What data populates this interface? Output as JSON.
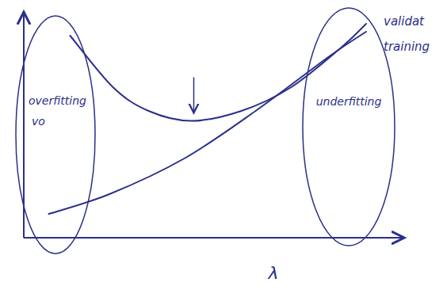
{
  "chart_data": {
    "type": "line",
    "xlabel": "λ",
    "xlim": [
      0,
      10
    ],
    "ylim": [
      0,
      11
    ],
    "tick_labels": false,
    "grid": false,
    "series": [
      {
        "name": "validat",
        "color": "#2b2f8a",
        "x": [
          1.3,
          2.5,
          3.5,
          4.7,
          6.1,
          7.5,
          8.9,
          9.6
        ],
        "values": [
          10.2,
          7.6,
          6.4,
          5.9,
          6.4,
          7.6,
          9.6,
          10.8
        ]
      },
      {
        "name": "training",
        "color": "#2b2f8a",
        "x": [
          0.7,
          2.4,
          4.5,
          6.5,
          8.6,
          9.6
        ],
        "values": [
          1.2,
          2.2,
          4.0,
          6.4,
          9.2,
          10.4
        ]
      }
    ],
    "annotations": [
      "overfitting",
      "vo",
      "underfitting"
    ]
  }
}
